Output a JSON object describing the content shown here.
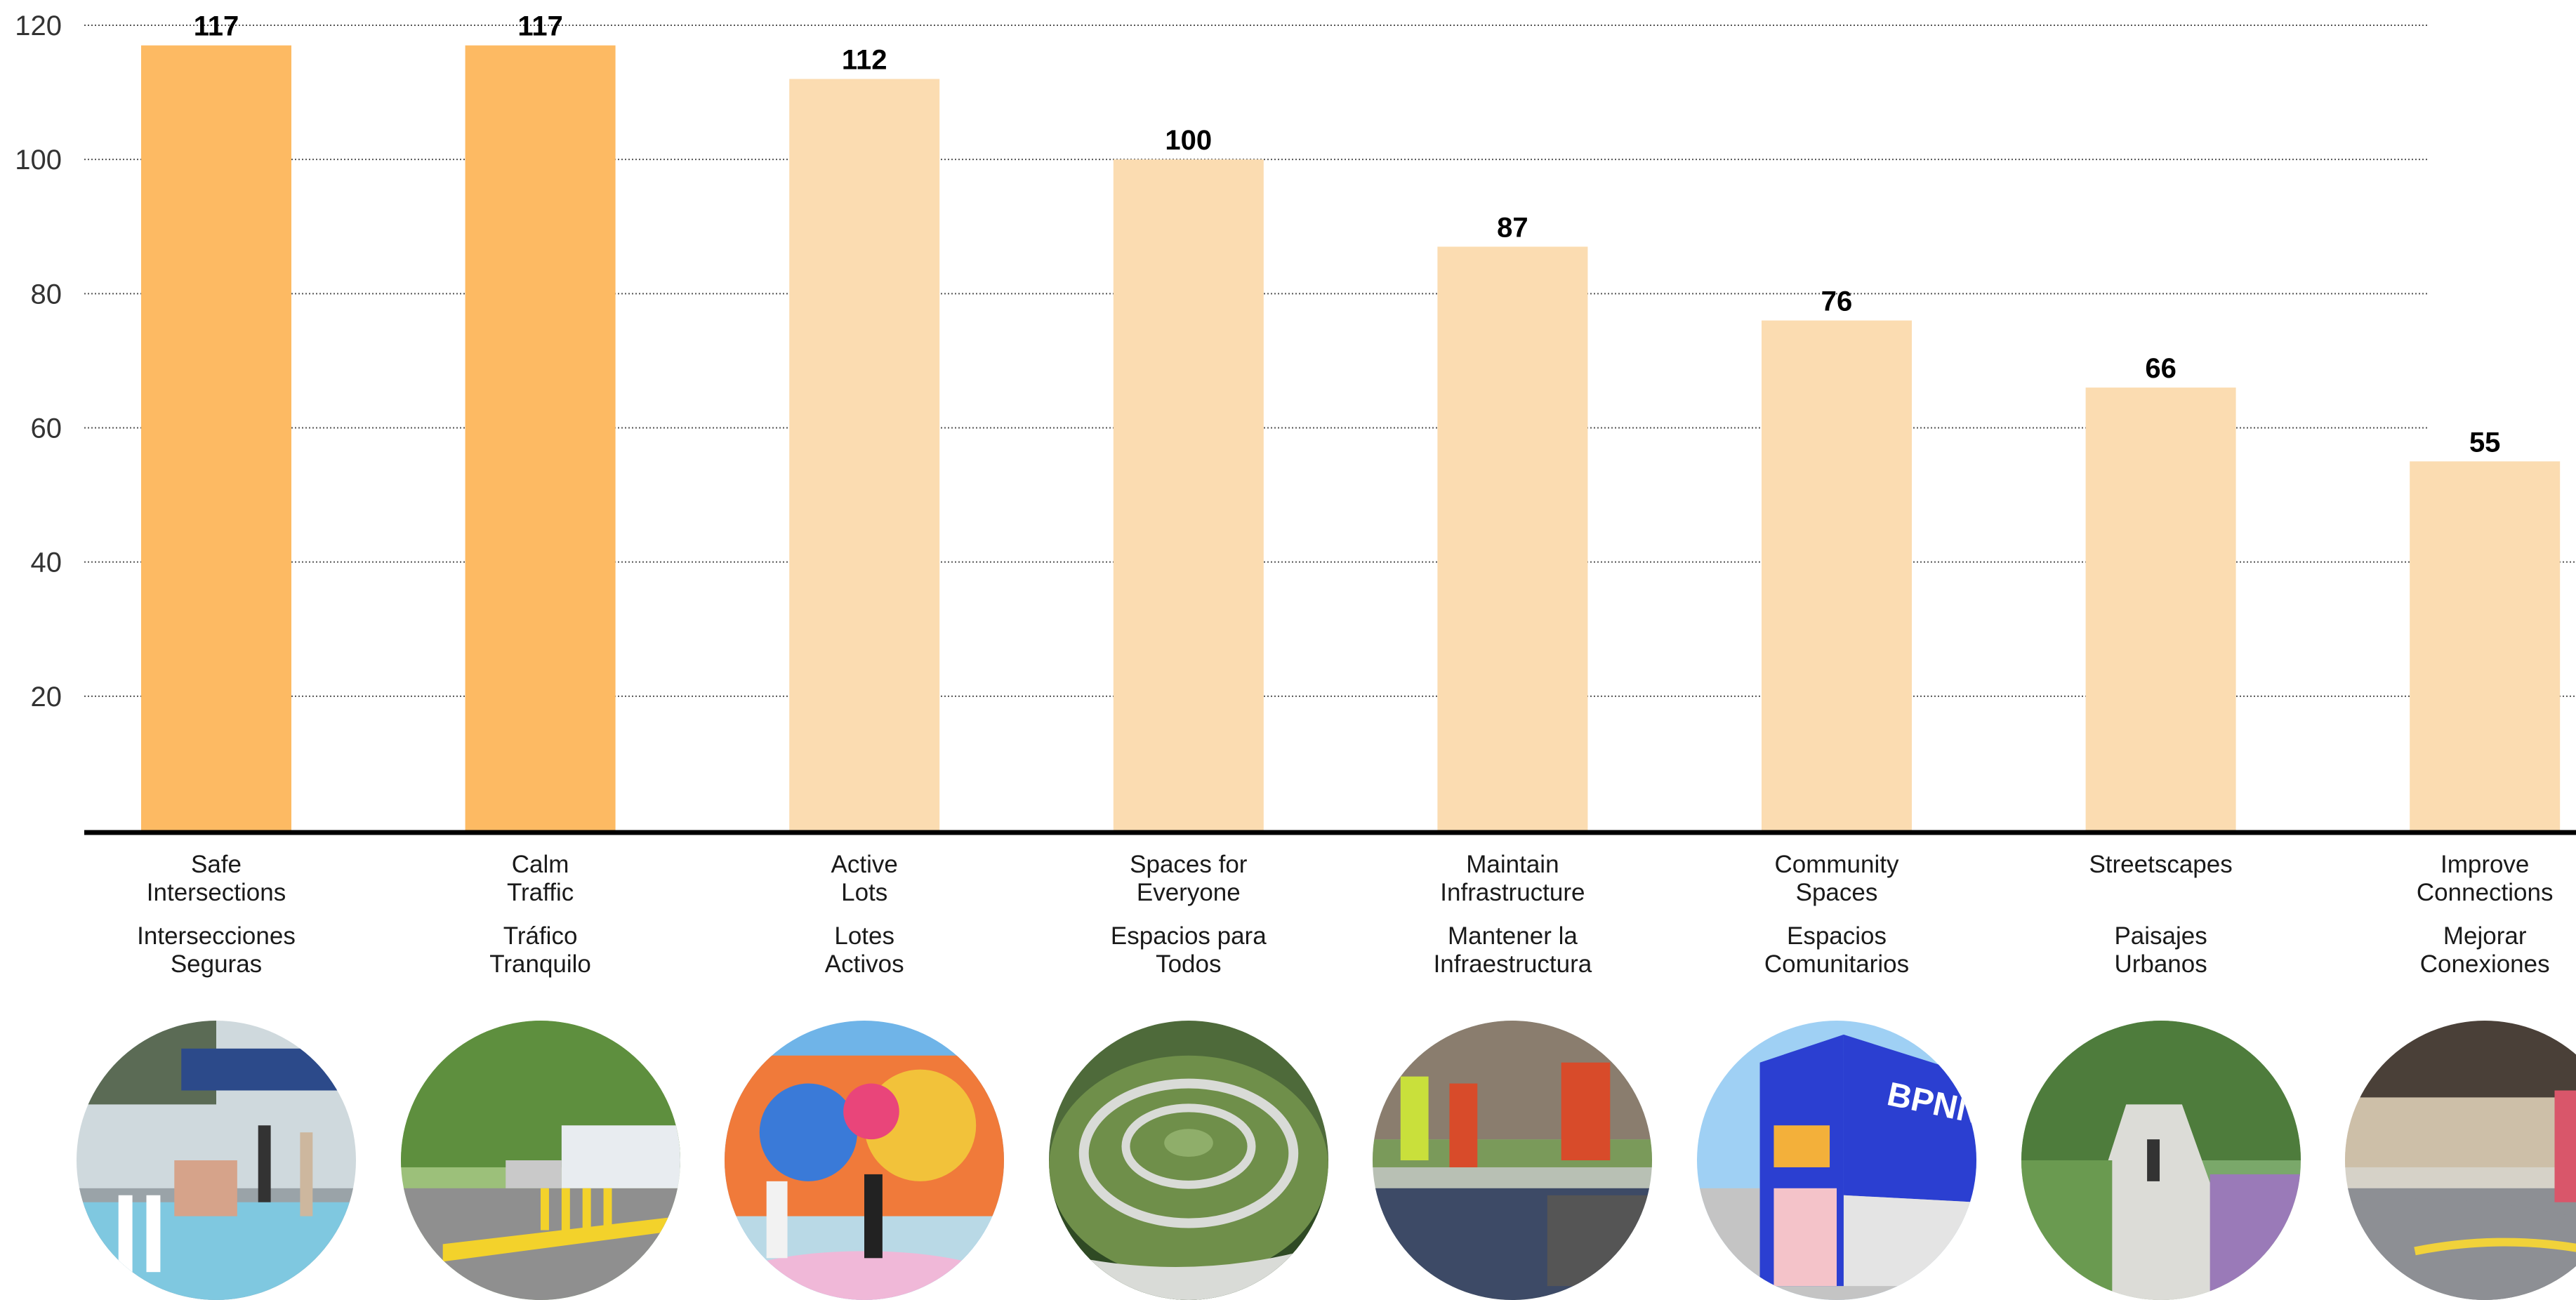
{
  "chart_data": {
    "type": "bar",
    "categories": [
      {
        "en": [
          "Safe",
          "Intersections"
        ],
        "es": [
          "Intersecciones",
          "Seguras"
        ]
      },
      {
        "en": [
          "Calm",
          "Traffic"
        ],
        "es": [
          "Tráfico",
          "Tranquilo"
        ]
      },
      {
        "en": [
          "Active",
          "Lots"
        ],
        "es": [
          "Lotes",
          "Activos"
        ]
      },
      {
        "en": [
          "Spaces for",
          "Everyone"
        ],
        "es": [
          "Espacios para",
          "Todos"
        ]
      },
      {
        "en": [
          "Maintain",
          "Infrastructure"
        ],
        "es": [
          "Mantener la",
          "Infraestructura"
        ]
      },
      {
        "en": [
          "Community",
          "Spaces"
        ],
        "es": [
          "Espacios",
          "Comunitarios"
        ]
      },
      {
        "en": [
          "Streetscapes"
        ],
        "es": [
          "Paisajes",
          "Urbanos"
        ]
      },
      {
        "en": [
          "Improve",
          "Connections"
        ],
        "es": [
          "Mejorar",
          "Conexiones"
        ]
      }
    ],
    "values": [
      117,
      117,
      112,
      100,
      87,
      76,
      66,
      55
    ],
    "highlighted": [
      true,
      true,
      false,
      false,
      false,
      false,
      false,
      false
    ],
    "yticks": [
      20,
      40,
      60,
      80,
      100,
      120
    ],
    "ylim": [
      0,
      120
    ],
    "grid": "horizontal dotted",
    "title": "",
    "xlabel": "",
    "ylabel": "",
    "colors": {
      "highlight": "#FDBA63",
      "normal": "#FBDCB1",
      "baseline": "#000000",
      "grid": "#555555",
      "tick_text": "#333333"
    }
  },
  "photos": [
    {
      "name": "safe-intersections-photo",
      "scene": "crosswalk",
      "sky": "#cfd9dd",
      "ground": "#9aa3a8",
      "accent": "#7fc8e0",
      "accent2": "#2c4a8a"
    },
    {
      "name": "calm-traffic-photo",
      "scene": "street",
      "sky": "#9cc07a",
      "ground": "#8f8f8f",
      "accent": "#f3d22b",
      "accent2": "#e8ecf0"
    },
    {
      "name": "active-lots-photo",
      "scene": "mural",
      "sky": "#6fb4e8",
      "ground": "#b9d9e6",
      "accent": "#e9457a",
      "accent2": "#f3a93a"
    },
    {
      "name": "spaces-for-everyone-photo",
      "scene": "park",
      "sky": "#4e6a3a",
      "ground": "#2f4a24",
      "accent": "#d9dbd7",
      "accent2": "#6f8f4a"
    },
    {
      "name": "maintain-infrastructure-photo",
      "scene": "roadwork",
      "sky": "#b8c0b4",
      "ground": "#3d4a66",
      "accent": "#d84b2a",
      "accent2": "#c9e03b"
    },
    {
      "name": "community-spaces-photo",
      "scene": "building",
      "sky": "#9fd0f4",
      "ground": "#c4c4c4",
      "accent": "#2b3fd1",
      "accent2": "#f3b03a"
    },
    {
      "name": "streetscapes-photo",
      "scene": "path",
      "sky": "#7aa86a",
      "ground": "#c7c7c2",
      "accent": "#9a7ab8",
      "accent2": "#4e7c3c"
    },
    {
      "name": "improve-connections-photo",
      "scene": "underpass",
      "sky": "#d6d2c8",
      "ground": "#8d8f94",
      "accent": "#f1d23a",
      "accent2": "#4a4038"
    }
  ]
}
